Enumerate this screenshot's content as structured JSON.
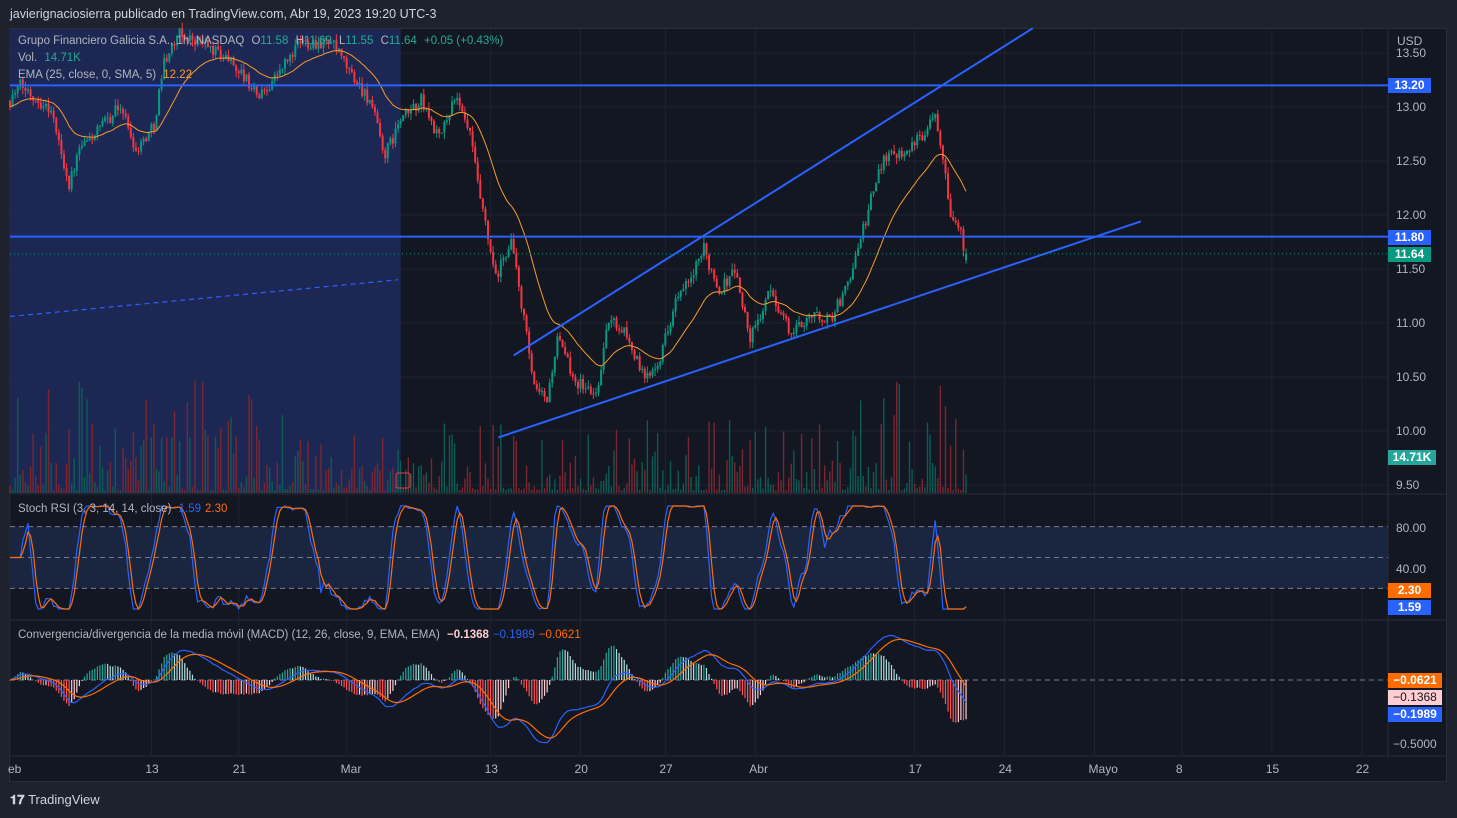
{
  "header": {
    "publisher": "javierignaciosierra publicado en TradingView.com, Abr 19, 2023 19:20 UTC-3"
  },
  "legend": {
    "symbol": "Grupo Financiero Galicia S.A., 1h, NASDAQ",
    "o_label": "O",
    "o": "11.58",
    "h_label": "H",
    "h": "11.69",
    "l_label": "L",
    "l": "11.55",
    "c_label": "C",
    "c": "11.64",
    "change": "+0.05 (+0.43%)",
    "vol_label": "Vol.",
    "vol": "14.71K",
    "ema_label": "EMA (25, close, 0, SMA, 5)",
    "ema": "12.22"
  },
  "stoch": {
    "label": "Stoch RSI (3, 3, 14, 14, close)",
    "k": "1.59",
    "d": "2.30",
    "axis": [
      "80.00",
      "40.00"
    ]
  },
  "macd": {
    "label": "Convergencia/divergencia de la media móvil (MACD) (12, 26, close, 9, EMA, EMA)",
    "hist": "−0.1368",
    "macd": "−0.1989",
    "signal": "−0.0621",
    "axis": [
      "−0.5000"
    ]
  },
  "price_axis": {
    "currency": "USD",
    "labels": [
      "13.50",
      "13.00",
      "12.50",
      "12.00",
      "11.50",
      "11.00",
      "10.50",
      "10.00",
      "9.50"
    ]
  },
  "tags": {
    "line_top": "13.20",
    "line_mid": "11.80",
    "last": "11.64",
    "volume": "14.71K"
  },
  "time_axis": [
    {
      "label": "eb",
      "bar": 0
    },
    {
      "label": "13",
      "bar": 55
    },
    {
      "label": "21",
      "bar": 89
    },
    {
      "label": "Mar",
      "bar": 131
    },
    {
      "label": "13",
      "bar": 187
    },
    {
      "label": "20",
      "bar": 222
    },
    {
      "label": "27",
      "bar": 255
    },
    {
      "label": "Abr",
      "bar": 290
    },
    {
      "label": "17",
      "bar": 352
    },
    {
      "label": "24",
      "bar": 387
    },
    {
      "label": "Mayo",
      "bar": 422
    },
    {
      "label": "8",
      "bar": 456
    },
    {
      "label": "15",
      "bar": 491
    },
    {
      "label": "22",
      "bar": 526
    }
  ],
  "footer": {
    "brand": "TradingView"
  },
  "colors": {
    "up": "#089981",
    "down": "#f23645",
    "line": "#2962ff",
    "ema": "#f89a2a",
    "bg": "#131722"
  },
  "chart_data": {
    "type": "candlestick",
    "interval": "1h",
    "symbol": "GGAL",
    "ylim": [
      9.4,
      13.75
    ],
    "price_keypoints": [
      [
        0,
        13.06
      ],
      [
        4,
        13.2
      ],
      [
        16,
        12.97
      ],
      [
        23,
        12.28
      ],
      [
        27,
        12.6
      ],
      [
        35,
        12.8
      ],
      [
        43,
        13.02
      ],
      [
        49,
        12.6
      ],
      [
        56,
        12.83
      ],
      [
        60,
        13.43
      ],
      [
        66,
        13.67
      ],
      [
        74,
        13.6
      ],
      [
        86,
        13.43
      ],
      [
        97,
        13.1
      ],
      [
        105,
        13.33
      ],
      [
        113,
        13.6
      ],
      [
        125,
        13.6
      ],
      [
        132,
        13.33
      ],
      [
        140,
        13.06
      ],
      [
        146,
        12.55
      ],
      [
        152,
        12.88
      ],
      [
        160,
        13.06
      ],
      [
        167,
        12.7
      ],
      [
        173,
        13.1
      ],
      [
        179,
        12.74
      ],
      [
        183,
        12.14
      ],
      [
        189,
        11.4
      ],
      [
        195,
        11.77
      ],
      [
        200,
        11.03
      ],
      [
        204,
        10.38
      ],
      [
        209,
        10.29
      ],
      [
        213,
        10.85
      ],
      [
        220,
        10.47
      ],
      [
        228,
        10.33
      ],
      [
        233,
        11.03
      ],
      [
        239,
        10.94
      ],
      [
        247,
        10.47
      ],
      [
        253,
        10.7
      ],
      [
        259,
        11.2
      ],
      [
        265,
        11.4
      ],
      [
        270,
        11.68
      ],
      [
        276,
        11.3
      ],
      [
        282,
        11.5
      ],
      [
        288,
        10.85
      ],
      [
        296,
        11.3
      ],
      [
        304,
        10.89
      ],
      [
        311,
        11.08
      ],
      [
        319,
        11.03
      ],
      [
        325,
        11.3
      ],
      [
        331,
        11.77
      ],
      [
        335,
        12.14
      ],
      [
        340,
        12.55
      ],
      [
        348,
        12.6
      ],
      [
        354,
        12.7
      ],
      [
        360,
        12.97
      ],
      [
        364,
        12.42
      ],
      [
        366,
        12.0
      ],
      [
        369,
        11.9
      ],
      [
        372,
        11.64
      ]
    ],
    "horizontal_lines": [
      13.2,
      11.8
    ],
    "trend_lines": [
      {
        "from": [
          196,
          10.7
        ],
        "to": [
          398,
          13.73
        ],
        "style": "solid"
      },
      {
        "from": [
          190,
          9.94
        ],
        "to": [
          440,
          11.94
        ],
        "style": "solid"
      },
      {
        "from": [
          0,
          11.06
        ],
        "to": [
          151,
          11.4
        ],
        "style": "dashed"
      }
    ],
    "highlight_range": [
      0,
      152
    ],
    "ema_period": 25,
    "stoch_levels": [
      80,
      50,
      20
    ]
  }
}
